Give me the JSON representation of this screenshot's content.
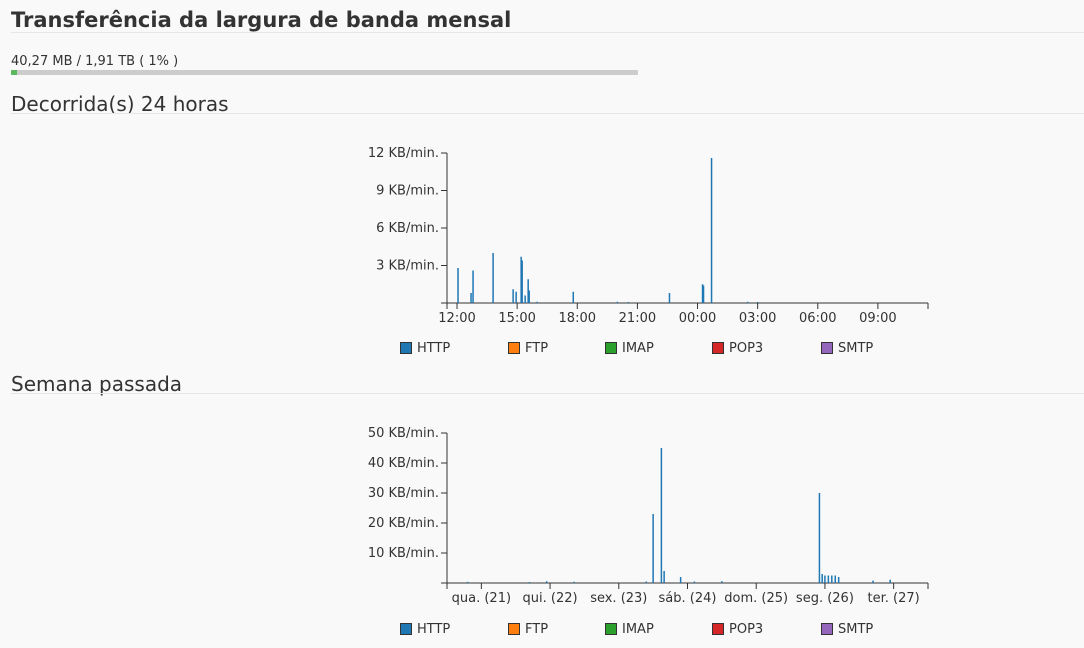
{
  "header": {
    "title": "Transferência da largura de banda mensal"
  },
  "usage": {
    "text": "40,27 MB / 1,91 TB ( 1% )",
    "fraction": 0.01
  },
  "sections": {
    "day": {
      "title": "Decorrida(s) 24 horas"
    },
    "week": {
      "title": "Semana passada"
    }
  },
  "legend": [
    {
      "label": "HTTP",
      "color": "#1f77b4",
      "icon": "http-swatch"
    },
    {
      "label": "FTP",
      "color": "#ff7f0e",
      "icon": "ftp-swatch"
    },
    {
      "label": "IMAP",
      "color": "#2ca02c",
      "icon": "imap-swatch"
    },
    {
      "label": "POP3",
      "color": "#d62728",
      "icon": "pop3-swatch"
    },
    {
      "label": "SMTP",
      "color": "#9467bd",
      "icon": "smtp-swatch"
    }
  ],
  "chart_data": [
    {
      "type": "bar",
      "name": "day",
      "x_unit": "hours since 11:30",
      "xlim": [
        0,
        24
      ],
      "ylim": [
        0,
        12
      ],
      "y_ticks": [
        {
          "value": 3,
          "label": "3 KB/min."
        },
        {
          "value": 6,
          "label": "6 KB/min."
        },
        {
          "value": 9,
          "label": "9 KB/min."
        },
        {
          "value": 12,
          "label": "12 KB/min."
        }
      ],
      "x_ticks": [
        {
          "value": 0.5,
          "label": "12:00"
        },
        {
          "value": 3.5,
          "label": "15:00"
        },
        {
          "value": 6.5,
          "label": "18:00"
        },
        {
          "value": 9.5,
          "label": "21:00"
        },
        {
          "value": 12.5,
          "label": "00:00"
        },
        {
          "value": 15.5,
          "label": "03:00"
        },
        {
          "value": 18.5,
          "label": "06:00"
        },
        {
          "value": 21.5,
          "label": "09:00"
        }
      ],
      "series": [
        {
          "name": "HTTP",
          "points": [
            [
              0.55,
              2.8
            ],
            [
              1.2,
              0.8
            ],
            [
              1.3,
              2.6
            ],
            [
              2.3,
              4.0
            ],
            [
              3.3,
              1.1
            ],
            [
              3.45,
              0.9
            ],
            [
              3.7,
              3.7
            ],
            [
              3.75,
              3.4
            ],
            [
              3.9,
              0.6
            ],
            [
              4.05,
              1.9
            ],
            [
              4.1,
              1.0
            ],
            [
              4.5,
              0.1
            ],
            [
              6.3,
              0.9
            ],
            [
              8.5,
              0.1
            ],
            [
              9.05,
              0.05
            ],
            [
              11.1,
              0.8
            ],
            [
              12.75,
              1.5
            ],
            [
              12.8,
              1.4
            ],
            [
              13.2,
              11.6
            ],
            [
              15.0,
              0.1
            ],
            [
              15.5,
              0.05
            ]
          ]
        }
      ]
    },
    {
      "type": "bar",
      "name": "week",
      "x_unit": "days since Tue 20 12:00",
      "xlim": [
        0,
        7
      ],
      "ylim": [
        0,
        50
      ],
      "y_ticks": [
        {
          "value": 10,
          "label": "10 KB/min."
        },
        {
          "value": 20,
          "label": "20 KB/min."
        },
        {
          "value": 30,
          "label": "30 KB/min."
        },
        {
          "value": 40,
          "label": "40 KB/min."
        },
        {
          "value": 50,
          "label": "50 KB/min."
        }
      ],
      "x_ticks": [
        {
          "value": 0.5,
          "label": "qua. (21)"
        },
        {
          "value": 1.5,
          "label": "qui. (22)"
        },
        {
          "value": 2.5,
          "label": "sex. (23)"
        },
        {
          "value": 3.5,
          "label": "sáb. (24)"
        },
        {
          "value": 4.5,
          "label": "dom. (25)"
        },
        {
          "value": 5.5,
          "label": "seg. (26)"
        },
        {
          "value": 6.5,
          "label": "ter. (27)"
        }
      ],
      "series": [
        {
          "name": "HTTP",
          "points": [
            [
              0.3,
              0.4
            ],
            [
              1.2,
              0.3
            ],
            [
              1.45,
              0.6
            ],
            [
              1.85,
              0.4
            ],
            [
              2.9,
              0.5
            ],
            [
              3.0,
              23.0
            ],
            [
              3.12,
              45.0
            ],
            [
              3.16,
              4.0
            ],
            [
              3.4,
              2.0
            ],
            [
              3.6,
              0.5
            ],
            [
              4.0,
              0.6
            ],
            [
              5.42,
              30.0
            ],
            [
              5.46,
              3.0
            ],
            [
              5.5,
              2.5
            ],
            [
              5.55,
              2.5
            ],
            [
              5.6,
              2.5
            ],
            [
              5.65,
              2.5
            ],
            [
              5.7,
              2.0
            ],
            [
              6.2,
              0.8
            ],
            [
              6.45,
              1.1
            ]
          ]
        }
      ]
    }
  ]
}
